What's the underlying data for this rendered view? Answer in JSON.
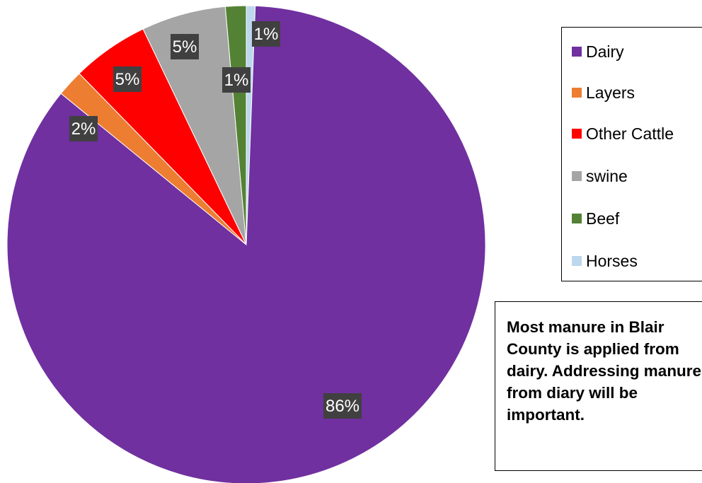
{
  "chart_data": {
    "type": "pie",
    "categories": [
      "Dairy",
      "Layers",
      "Other Cattle",
      "swine",
      "Beef",
      "Horses"
    ],
    "values": [
      86,
      2,
      5,
      5,
      1,
      1
    ],
    "labels": [
      "86%",
      "2%",
      "5%",
      "5%",
      "1%",
      "1%"
    ],
    "colors": [
      "#7030a0",
      "#ed7d31",
      "#ff0000",
      "#a5a5a5",
      "#548235",
      "#bdd7ee"
    ],
    "label_bg": "#404040",
    "legend_position": "right"
  },
  "note": {
    "lines": [
      "Most manure in Blair",
      "County is applied from",
      "dairy. Addressing manure",
      "from diary will be",
      "important."
    ]
  }
}
